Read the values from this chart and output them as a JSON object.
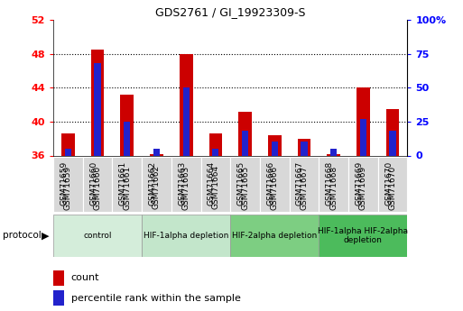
{
  "title": "GDS2761 / GI_19923309-S",
  "samples": [
    "GSM71659",
    "GSM71660",
    "GSM71661",
    "GSM71662",
    "GSM71663",
    "GSM71664",
    "GSM71665",
    "GSM71666",
    "GSM71667",
    "GSM71668",
    "GSM71669",
    "GSM71670"
  ],
  "count_values": [
    38.6,
    48.5,
    43.2,
    36.2,
    48.0,
    38.6,
    41.2,
    38.4,
    38.0,
    36.2,
    44.0,
    41.5
  ],
  "percentile_values": [
    5,
    68,
    25,
    5,
    50,
    5,
    18,
    10,
    10,
    5,
    27,
    18
  ],
  "y_min": 36,
  "y_max": 52,
  "y_ticks": [
    36,
    40,
    44,
    48,
    52
  ],
  "y2_ticks": [
    0,
    25,
    50,
    75,
    100
  ],
  "bar_color_red": "#cc0000",
  "bar_color_blue": "#2222cc",
  "groups": [
    {
      "label": "control",
      "start": 0,
      "end": 2,
      "color": "#d4edda"
    },
    {
      "label": "HIF-1alpha depletion",
      "start": 3,
      "end": 5,
      "color": "#c3e6cb"
    },
    {
      "label": "HIF-2alpha depletion",
      "start": 6,
      "end": 8,
      "color": "#7dce82"
    },
    {
      "label": "HIF-1alpha HIF-2alpha\ndepletion",
      "start": 9,
      "end": 11,
      "color": "#4cbb5c"
    }
  ],
  "bar_base": 36,
  "red_bar_width": 0.45,
  "blue_bar_width": 0.22
}
